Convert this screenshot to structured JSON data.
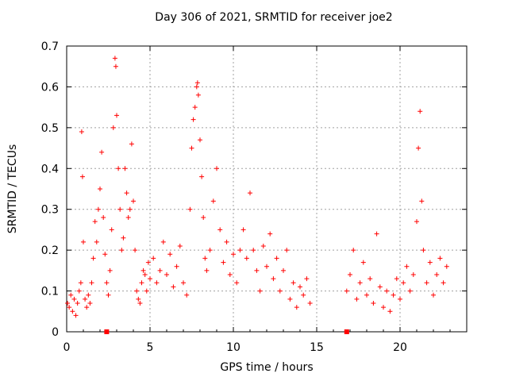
{
  "chart_data": {
    "type": "scatter",
    "title": "Day 306 of 2021, SRMTID for receiver joe2",
    "xlabel": "GPS time / hours",
    "ylabel": "SRMTID / TECUs",
    "xlim": [
      0,
      24
    ],
    "ylim": [
      0,
      0.7
    ],
    "xticks": [
      0,
      5,
      10,
      15,
      20
    ],
    "xtick_labels": [
      "0",
      "5",
      "10",
      "15",
      "20"
    ],
    "yticks": [
      0,
      0.1,
      0.2,
      0.3,
      0.4,
      0.5,
      0.6,
      0.7
    ],
    "ytick_labels": [
      "0",
      "0.1",
      "0.2",
      "0.3",
      "0.4",
      "0.5",
      "0.6",
      "0.7"
    ],
    "grid": true,
    "marker": "+",
    "color": "#ff0000",
    "series": [
      {
        "name": "SRMTID",
        "points": [
          [
            0.05,
            0.07
          ],
          [
            0.15,
            0.06
          ],
          [
            0.25,
            0.09
          ],
          [
            0.35,
            0.05
          ],
          [
            0.45,
            0.08
          ],
          [
            0.55,
            0.04
          ],
          [
            0.65,
            0.07
          ],
          [
            0.75,
            0.1
          ],
          [
            0.85,
            0.12
          ],
          [
            0.9,
            0.49
          ],
          [
            0.95,
            0.38
          ],
          [
            1.0,
            0.22
          ],
          [
            1.1,
            0.08
          ],
          [
            1.2,
            0.06
          ],
          [
            1.3,
            0.09
          ],
          [
            1.4,
            0.07
          ],
          [
            1.5,
            0.12
          ],
          [
            1.6,
            0.18
          ],
          [
            1.7,
            0.27
          ],
          [
            1.8,
            0.22
          ],
          [
            1.9,
            0.3
          ],
          [
            2.0,
            0.35
          ],
          [
            2.1,
            0.44
          ],
          [
            2.2,
            0.28
          ],
          [
            2.3,
            0.19
          ],
          [
            2.4,
            0.12
          ],
          [
            2.5,
            0.09
          ],
          [
            2.6,
            0.15
          ],
          [
            2.7,
            0.25
          ],
          [
            2.8,
            0.5
          ],
          [
            2.9,
            0.67
          ],
          [
            2.95,
            0.65
          ],
          [
            3.0,
            0.53
          ],
          [
            3.1,
            0.4
          ],
          [
            3.2,
            0.3
          ],
          [
            3.3,
            0.2
          ],
          [
            3.4,
            0.23
          ],
          [
            3.5,
            0.4
          ],
          [
            3.6,
            0.34
          ],
          [
            3.7,
            0.28
          ],
          [
            3.8,
            0.3
          ],
          [
            3.9,
            0.46
          ],
          [
            4.0,
            0.32
          ],
          [
            4.1,
            0.2
          ],
          [
            4.2,
            0.1
          ],
          [
            4.3,
            0.08
          ],
          [
            4.4,
            0.07
          ],
          [
            4.5,
            0.12
          ],
          [
            4.6,
            0.15
          ],
          [
            4.7,
            0.14
          ],
          [
            4.8,
            0.1
          ],
          [
            4.9,
            0.17
          ],
          [
            5.0,
            0.13
          ],
          [
            5.2,
            0.18
          ],
          [
            5.4,
            0.12
          ],
          [
            5.6,
            0.15
          ],
          [
            5.8,
            0.22
          ],
          [
            6.0,
            0.14
          ],
          [
            6.2,
            0.19
          ],
          [
            6.4,
            0.11
          ],
          [
            6.6,
            0.16
          ],
          [
            6.8,
            0.21
          ],
          [
            7.0,
            0.12
          ],
          [
            7.2,
            0.09
          ],
          [
            7.4,
            0.3
          ],
          [
            7.5,
            0.45
          ],
          [
            7.6,
            0.52
          ],
          [
            7.7,
            0.55
          ],
          [
            7.8,
            0.6
          ],
          [
            7.85,
            0.61
          ],
          [
            7.9,
            0.58
          ],
          [
            8.0,
            0.47
          ],
          [
            8.1,
            0.38
          ],
          [
            8.2,
            0.28
          ],
          [
            8.3,
            0.18
          ],
          [
            8.4,
            0.15
          ],
          [
            8.6,
            0.2
          ],
          [
            8.8,
            0.32
          ],
          [
            9.0,
            0.4
          ],
          [
            9.2,
            0.25
          ],
          [
            9.4,
            0.17
          ],
          [
            9.6,
            0.22
          ],
          [
            9.8,
            0.14
          ],
          [
            10.0,
            0.19
          ],
          [
            10.2,
            0.12
          ],
          [
            10.4,
            0.2
          ],
          [
            10.6,
            0.25
          ],
          [
            10.8,
            0.18
          ],
          [
            11.0,
            0.34
          ],
          [
            11.2,
            0.2
          ],
          [
            11.4,
            0.15
          ],
          [
            11.6,
            0.1
          ],
          [
            11.8,
            0.21
          ],
          [
            12.0,
            0.16
          ],
          [
            12.2,
            0.24
          ],
          [
            12.4,
            0.13
          ],
          [
            12.6,
            0.18
          ],
          [
            12.8,
            0.1
          ],
          [
            13.0,
            0.15
          ],
          [
            13.2,
            0.2
          ],
          [
            13.4,
            0.08
          ],
          [
            13.6,
            0.12
          ],
          [
            13.8,
            0.06
          ],
          [
            14.0,
            0.11
          ],
          [
            14.2,
            0.09
          ],
          [
            14.4,
            0.13
          ],
          [
            14.6,
            0.07
          ],
          [
            16.8,
            0.1
          ],
          [
            17.0,
            0.14
          ],
          [
            17.2,
            0.2
          ],
          [
            17.4,
            0.08
          ],
          [
            17.6,
            0.12
          ],
          [
            17.8,
            0.17
          ],
          [
            18.0,
            0.09
          ],
          [
            18.2,
            0.13
          ],
          [
            18.4,
            0.07
          ],
          [
            18.6,
            0.24
          ],
          [
            18.8,
            0.11
          ],
          [
            19.0,
            0.06
          ],
          [
            19.2,
            0.1
          ],
          [
            19.4,
            0.05
          ],
          [
            19.6,
            0.09
          ],
          [
            19.8,
            0.13
          ],
          [
            20.0,
            0.08
          ],
          [
            20.2,
            0.12
          ],
          [
            20.4,
            0.16
          ],
          [
            20.6,
            0.1
          ],
          [
            20.8,
            0.14
          ],
          [
            21.0,
            0.27
          ],
          [
            21.1,
            0.45
          ],
          [
            21.2,
            0.54
          ],
          [
            21.3,
            0.32
          ],
          [
            21.4,
            0.2
          ],
          [
            21.6,
            0.12
          ],
          [
            21.8,
            0.17
          ],
          [
            22.0,
            0.09
          ],
          [
            22.2,
            0.14
          ],
          [
            22.4,
            0.18
          ],
          [
            22.6,
            0.12
          ],
          [
            22.8,
            0.16
          ]
        ]
      }
    ],
    "zero_markers": [
      2.4,
      16.8
    ]
  }
}
